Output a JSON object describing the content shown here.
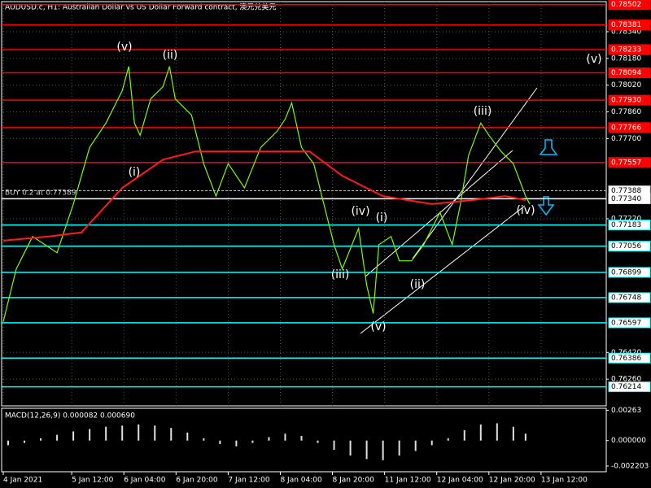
{
  "chart_data": [
    {
      "type": "line",
      "title": "AUDUSD.c, H1:  Australian Dollar vs US Dollar Forward contract, 澳元兑美元",
      "order_label": "BUY 0.2 at 0.77389",
      "xlim": [
        0,
        185
      ],
      "xticks": [
        {
          "value": 0,
          "label": "4 Jan 2021"
        },
        {
          "value": 21,
          "label": "5 Jan 12:00"
        },
        {
          "value": 37,
          "label": "6 Jan 04:00"
        },
        {
          "value": 53,
          "label": "6 Jan 20:00"
        },
        {
          "value": 69,
          "label": "7 Jan 12:00"
        },
        {
          "value": 85,
          "label": "8 Jan 04:00"
        },
        {
          "value": 101,
          "label": "8 Jan 20:00"
        },
        {
          "value": 117,
          "label": "11 Jan 12:00"
        },
        {
          "value": 133,
          "label": "12 Jan 04:00"
        },
        {
          "value": 149,
          "label": "12 Jan 20:00"
        },
        {
          "value": 165,
          "label": "13 Jan 12:00"
        }
      ],
      "ylim": [
        0.761,
        0.7852
      ],
      "yticks": [
        {
          "value": 0.7834,
          "label": "0.78340"
        },
        {
          "value": 0.7818,
          "label": "0.78180"
        },
        {
          "value": 0.7802,
          "label": "0.78020"
        },
        {
          "value": 0.7786,
          "label": "0.77860"
        },
        {
          "value": 0.777,
          "label": "0.77700"
        },
        {
          "value": 0.7722,
          "label": "0.77220"
        },
        {
          "value": 0.7642,
          "label": "0.76420"
        },
        {
          "value": 0.7626,
          "label": "0.76260"
        }
      ],
      "grid": true,
      "series": [
        {
          "color": "#7cfc00",
          "x": [
            0,
            4,
            9,
            16.5,
            21.5,
            26.5,
            31.5,
            36.5,
            38.5,
            40.25,
            42,
            45.25,
            49,
            51,
            52.75,
            57.75,
            61.5,
            65.25,
            69,
            74,
            79,
            84,
            86.5,
            88.5,
            91.5,
            95.25,
            99,
            101.5,
            104,
            109,
            111.5,
            113.5,
            115.25,
            119,
            121.5,
            125.25,
            129,
            134,
            137.75,
            140.25,
            142.75,
            146.5,
            149,
            152.75,
            156.5,
            160.25,
            161.5
          ],
          "values": [
            0.76604,
            0.7692,
            0.77114,
            0.77017,
            0.77308,
            0.77647,
            0.77793,
            0.77987,
            0.78132,
            0.77793,
            0.7772,
            0.77938,
            0.78011,
            0.78132,
            0.77938,
            0.77841,
            0.7755,
            0.77356,
            0.7755,
            0.77405,
            0.77647,
            0.77744,
            0.77817,
            0.77914,
            0.77647,
            0.7755,
            0.77259,
            0.77065,
            0.7692,
            0.77162,
            0.76823,
            0.76653,
            0.77065,
            0.77114,
            0.76968,
            0.76968,
            0.77065,
            0.77259,
            0.77065,
            0.77308,
            0.77599,
            0.77793,
            0.7772,
            0.77623,
            0.7755,
            0.77356,
            0.77308
          ]
        },
        {
          "color": "#ff1a1a",
          "x": [
            0,
            14,
            24,
            36.5,
            49,
            59,
            74,
            94,
            104,
            116.5,
            131.5,
            144,
            154,
            160.25
          ],
          "values": [
            0.77089,
            0.77114,
            0.77138,
            0.77405,
            0.77574,
            0.77623,
            0.77623,
            0.77623,
            0.77477,
            0.77356,
            0.77308,
            0.77332,
            0.77356,
            0.77332
          ]
        }
      ],
      "levels": [
        {
          "value": 0.78502,
          "color": "#ff0000"
        },
        {
          "value": 0.78381,
          "color": "#ff0000"
        },
        {
          "value": 0.78233,
          "color": "#ff0000"
        },
        {
          "value": 0.78094,
          "color": "#ff0000"
        },
        {
          "value": 0.7793,
          "label": "0.77930",
          "color": "#ff0000"
        },
        {
          "value": 0.77766,
          "color": "#ff0000"
        },
        {
          "value": 0.77557,
          "color": "#ff0000"
        },
        {
          "value": 0.77388,
          "color": "#c0c0c0"
        },
        {
          "value": 0.7734,
          "label": "0.77340",
          "color": "#ffffff"
        },
        {
          "value": 0.77183,
          "color": "#00ffff"
        },
        {
          "value": 0.77056,
          "color": "#00ffff"
        },
        {
          "value": 0.76899,
          "color": "#00ffff"
        },
        {
          "value": 0.76748,
          "color": "#00ffff"
        },
        {
          "value": 0.76597,
          "color": "#00ffff"
        },
        {
          "value": 0.76386,
          "color": "#00ffff"
        },
        {
          "value": 0.76214,
          "color": "#00ffff"
        }
      ],
      "annotations": [
        "(v)",
        "(ii)",
        "(i)",
        "(iii)",
        "(iv)",
        "(i)",
        "(v)",
        "(ii)",
        "(iii)",
        "(iv)",
        "(v)"
      ]
    },
    {
      "type": "bar",
      "title": "MACD(12,26,9) 0.000082 0.000690",
      "color": "#e0e0e0",
      "xlim": [
        0,
        185
      ],
      "ylim": [
        -0.0027,
        0.0028
      ],
      "yticks": [
        0.00263,
        {
          "value": 0,
          "label": "0.000000"
        },
        -0.002203
      ],
      "x": [
        1.5,
        6.5,
        11.5,
        16.5,
        21.5,
        26.5,
        31.5,
        36.5,
        41.5,
        46.5,
        51.5,
        56.5,
        61.5,
        66.5,
        71.5,
        76.5,
        81.5,
        86.5,
        91.5,
        96.5,
        101.5,
        106.5,
        111.5,
        116.5,
        121.5,
        126.5,
        131.5,
        136.5,
        141.5,
        146.5,
        151.5,
        156.5,
        160.25
      ],
      "values": [
        -0.0004,
        -0.0002,
        0.0002,
        0.0005,
        0.0008,
        0.001,
        0.0012,
        0.0013,
        0.0014,
        0.0013,
        0.0011,
        0.0007,
        0.0002,
        -0.0003,
        -0.0005,
        -0.0002,
        0.0003,
        0.0006,
        0.0004,
        -0.0002,
        -0.0008,
        -0.0013,
        -0.0016,
        -0.0017,
        -0.0013,
        -0.0009,
        -0.0004,
        0.0002,
        0.0009,
        0.0014,
        0.0015,
        0.0012,
        0.0006
      ]
    }
  ]
}
